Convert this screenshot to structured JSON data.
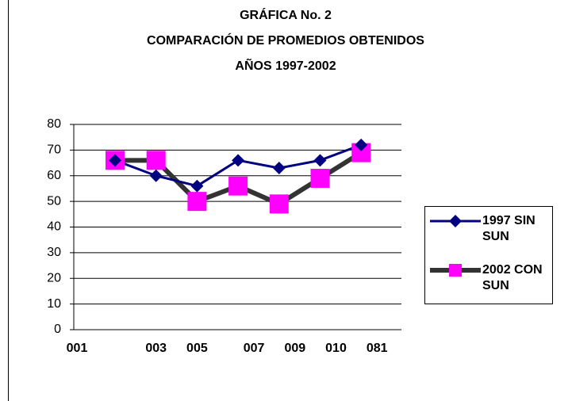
{
  "chart_data": {
    "type": "line",
    "title": [
      "GRÁFICA No. 2",
      "COMPARACIÓN DE PROMEDIOS OBTENIDOS",
      "AÑOS 1997-2002"
    ],
    "categories": [
      "001",
      "003",
      "005",
      "007",
      "009",
      "010",
      "081"
    ],
    "series": [
      {
        "name": "1997 SIN SUN",
        "color": "#000080",
        "marker": "diamond",
        "values": [
          66,
          60,
          56,
          66,
          63,
          66,
          72
        ]
      },
      {
        "name": "2002 CON SUN",
        "color": "#333333",
        "marker": "square",
        "marker_color": "#ff00ff",
        "values": [
          66,
          66,
          50,
          56,
          49,
          59,
          69
        ]
      }
    ],
    "ylim": [
      0,
      80
    ],
    "yticks": [
      0,
      10,
      20,
      30,
      40,
      50,
      60,
      70,
      80
    ],
    "grid": true,
    "legend": "right"
  }
}
